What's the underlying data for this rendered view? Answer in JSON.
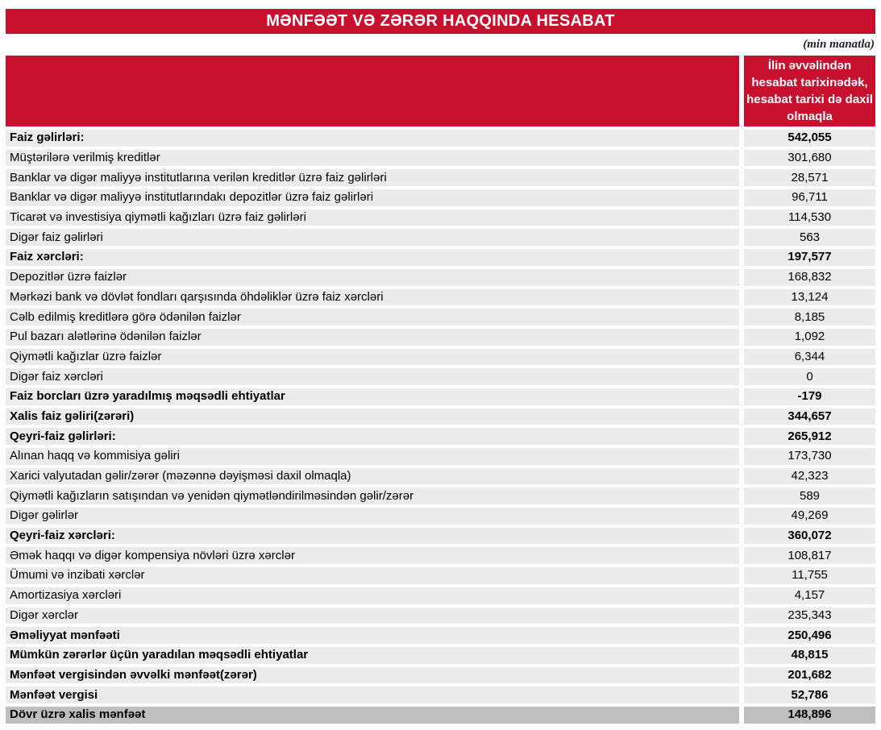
{
  "report": {
    "title": "MƏNFƏƏT VƏ ZƏRƏR HAQQINDA HESABAT",
    "unit_note": "(min manatla)"
  },
  "colors": {
    "accent_red": "#C8102E",
    "row_gray": "#EBEBEB",
    "total_row_gray": "#BFBFBF",
    "header_text": "#FFFFFF"
  },
  "table": {
    "value_column_header": "İlin əvvəlindən hesabat tarixinədək, hesabat tarixi də daxil olmaqla",
    "rows": [
      {
        "label": "Faiz gəlirləri:",
        "value": "542,055",
        "bold": true,
        "highlight": false
      },
      {
        "label": "Müştərilərə verilmiş kreditlər",
        "value": "301,680",
        "bold": false,
        "highlight": false
      },
      {
        "label": "Banklar və digər maliyyə institutlarına verilən kreditlər üzrə faiz gəlirləri",
        "value": "28,571",
        "bold": false,
        "highlight": false
      },
      {
        "label": "Banklar və digər maliyyə institutlarındakı depozitlər üzrə faiz gəlirləri",
        "value": "96,711",
        "bold": false,
        "highlight": false
      },
      {
        "label": "Ticarət və investisiya qiymətli kağızları üzrə faiz gəlirləri",
        "value": "114,530",
        "bold": false,
        "highlight": false
      },
      {
        "label": "Digər faiz gəlirləri",
        "value": "563",
        "bold": false,
        "highlight": false
      },
      {
        "label": "Faiz xərcləri:",
        "value": "197,577",
        "bold": true,
        "highlight": false
      },
      {
        "label": "Depozitlər üzrə faizlər",
        "value": "168,832",
        "bold": false,
        "highlight": false
      },
      {
        "label": "Mərkəzi bank və dövlət fondları qarşısında öhdəliklər üzrə faiz xərcləri",
        "value": "13,124",
        "bold": false,
        "highlight": false
      },
      {
        "label": "Cəlb edilmiş kreditlərə görə ödənilən faizlər",
        "value": "8,185",
        "bold": false,
        "highlight": false
      },
      {
        "label": "Pul bazarı alətlərinə ödənilən faizlər",
        "value": "1,092",
        "bold": false,
        "highlight": false
      },
      {
        "label": "Qiymətli kağızlar üzrə faizlər",
        "value": "6,344",
        "bold": false,
        "highlight": false
      },
      {
        "label": "Digər faiz xərcləri",
        "value": "0",
        "bold": false,
        "highlight": false
      },
      {
        "label": "Faiz borcları üzrə yaradılmış məqsədli ehtiyatlar",
        "value": "-179",
        "bold": true,
        "highlight": false
      },
      {
        "label": "Xalis faiz gəliri(zərəri)",
        "value": "344,657",
        "bold": true,
        "highlight": false
      },
      {
        "label": "Qeyri-faiz gəlirləri:",
        "value": "265,912",
        "bold": true,
        "highlight": false
      },
      {
        "label": "Alınan haqq və kommisiya gəliri",
        "value": "173,730",
        "bold": false,
        "highlight": false
      },
      {
        "label": "Xarici valyutadan gəlir/zərər (məzənnə dəyişməsi daxil olmaqla)",
        "value": "42,323",
        "bold": false,
        "highlight": false
      },
      {
        "label": " Qiymətli kağızların satışından və yenidən qiymətləndirilməsindən gəlir/zərər",
        "value": "589",
        "bold": false,
        "highlight": false
      },
      {
        "label": "Digər gəlirlər",
        "value": "49,269",
        "bold": false,
        "highlight": false
      },
      {
        "label": "Qeyri-faiz xərcləri:",
        "value": "360,072",
        "bold": true,
        "highlight": false
      },
      {
        "label": "Əmək haqqı və digər kompensiya növləri üzrə xərclər",
        "value": "108,817",
        "bold": false,
        "highlight": false
      },
      {
        "label": "Ümumi və inzibati xərclər",
        "value": "11,755",
        "bold": false,
        "highlight": false
      },
      {
        "label": "Amortizasiya xərcləri",
        "value": "4,157",
        "bold": false,
        "highlight": false
      },
      {
        "label": "Digər xərclər",
        "value": "235,343",
        "bold": false,
        "highlight": false
      },
      {
        "label": "Əməliyyat mənfəəti",
        "value": "250,496",
        "bold": true,
        "highlight": false
      },
      {
        "label": "Mümkün zərərlər üçün yaradılan məqsədli ehtiyatlar",
        "value": "48,815",
        "bold": true,
        "highlight": false
      },
      {
        "label": "Mənfəət vergisindən əvvəlki mənfəət(zərər)",
        "value": "201,682",
        "bold": true,
        "highlight": false
      },
      {
        "label": "Mənfəət vergisi",
        "value": "52,786",
        "bold": true,
        "highlight": false
      },
      {
        "label": "Dövr üzrə xalis mənfəət",
        "value": "148,896",
        "bold": true,
        "highlight": true
      }
    ]
  }
}
